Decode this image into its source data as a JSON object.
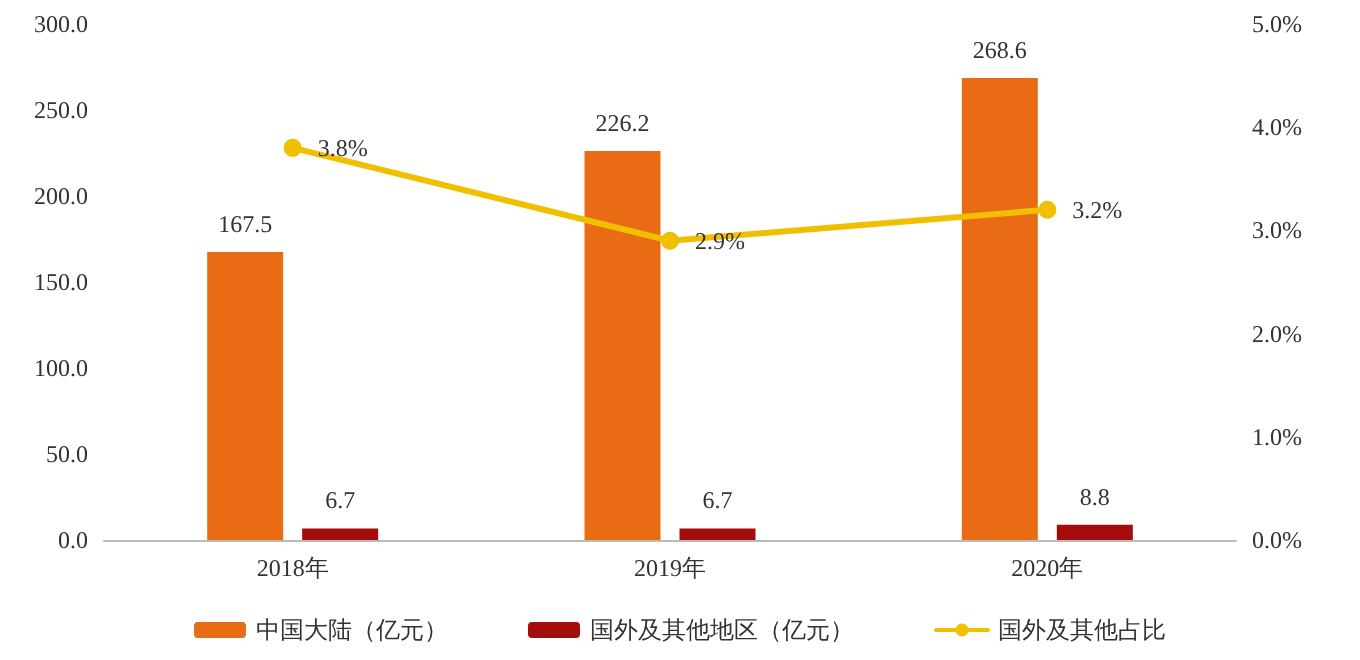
{
  "chart_data": {
    "type": "bar",
    "categories": [
      "2018年",
      "2019年",
      "2020年"
    ],
    "series": [
      {
        "name": "中国大陆（亿元）",
        "color": "#e96c15",
        "values": [
          167.5,
          226.2,
          268.6
        ],
        "value_labels": [
          "167.5",
          "226.2",
          "268.6"
        ]
      },
      {
        "name": "国外及其他地区（亿元）",
        "color": "#a50d0d",
        "values": [
          6.7,
          6.7,
          8.8
        ],
        "value_labels": [
          "6.7",
          "6.7",
          "8.8"
        ]
      },
      {
        "name": "国外及其他占比",
        "type": "line",
        "axis": "y2",
        "color": "#f0c000",
        "values": [
          3.8,
          2.9,
          3.2
        ],
        "value_labels": [
          "3.8%",
          "2.9%",
          "3.2%"
        ]
      }
    ],
    "ylim": [
      0,
      300
    ],
    "yticks": [
      {
        "value": 0,
        "label": "0.0"
      },
      {
        "value": 50,
        "label": "50.0"
      },
      {
        "value": 100,
        "label": "100.0"
      },
      {
        "value": 150,
        "label": "150.0"
      },
      {
        "value": 200,
        "label": "200.0"
      },
      {
        "value": 250,
        "label": "250.0"
      },
      {
        "value": 300,
        "label": "300.0"
      }
    ],
    "y2lim": [
      0,
      5
    ],
    "y2ticks": [
      {
        "value": 0,
        "label": "0.0%"
      },
      {
        "value": 1,
        "label": "1.0%"
      },
      {
        "value": 2,
        "label": "2.0%"
      },
      {
        "value": 3,
        "label": "3.0%"
      },
      {
        "value": 4,
        "label": "4.0%"
      },
      {
        "value": 5,
        "label": "5.0%"
      }
    ],
    "grid": false,
    "legend": "bottom",
    "marker": "circle",
    "line_style": "solid"
  }
}
